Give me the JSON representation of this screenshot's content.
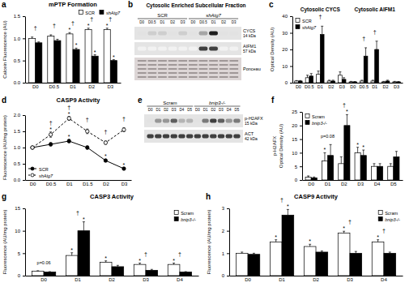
{
  "chart_data": [
    {
      "type": "bar",
      "panel": "a",
      "title": "mPTP Formation",
      "ylabel": "Calcein Fluorescence (AU)",
      "categories": [
        "D0",
        "D0.5",
        "D1",
        "D2",
        "D3"
      ],
      "series": [
        {
          "name": "SCR",
          "color": "#ffffff",
          "values": [
            1.0,
            1.05,
            1.1,
            1.2,
            1.2
          ],
          "errors": [
            0.03,
            0.03,
            0.03,
            0.03,
            0.03
          ],
          "significance": [
            null,
            null,
            "*",
            "*",
            "*"
          ]
        },
        {
          "name": "shAtg7",
          "color": "#000000",
          "values": [
            0.9,
            0.95,
            0.75,
            0.6,
            0.5
          ],
          "errors": [
            0.02,
            0.03,
            0.03,
            0.03,
            0.02
          ],
          "significance": [
            null,
            null,
            "*",
            "*",
            "*"
          ]
        }
      ],
      "group_significance": [
        "†",
        "†",
        "†",
        "†",
        "†"
      ],
      "ylim": [
        0,
        1.5
      ],
      "yticks": [
        {
          "value": 0,
          "label": "0.0"
        },
        0.5,
        {
          "value": 1,
          "label": "1.0"
        },
        1.5
      ],
      "legend": "top"
    },
    {
      "type": "blot",
      "panel": "b",
      "title": "Cytosolic Enriched Subcellular Fraction",
      "groups": [
        "SCR",
        "shAtg7"
      ],
      "lanes": [
        "D0",
        "D0.5",
        "D1",
        "D2",
        "D3"
      ],
      "rows": [
        {
          "name": "CYCS",
          "size": "14 kDa",
          "bands": [
            0.2,
            0.3,
            0.3,
            0.2,
            0.3,
            0.2,
            0.45,
            0.9,
            0.2,
            0.2
          ]
        },
        {
          "name": "AIFM1",
          "size": "57 kDa",
          "bands": [
            0.1,
            0.1,
            0.1,
            0.1,
            0.1,
            0.1,
            0.8,
            0.8,
            0.1,
            0.1
          ]
        },
        {
          "name": "Ponceau"
        }
      ]
    },
    {
      "type": "bar",
      "panel": "c",
      "subtitles": [
        "Cytosolic CYCS",
        "Cytosolic AIFM1"
      ],
      "ylabel": "Optical Density (AU)",
      "categories": [
        "D0",
        "D0.5",
        "D1",
        "D2",
        "D3",
        "D0",
        "D0.5",
        "D1",
        "D2",
        "D3"
      ],
      "series": [
        {
          "name": "SCR",
          "color": "#ffffff",
          "values": [
            1,
            3,
            5,
            1,
            4.5,
            0.5,
            1,
            1,
            0.5,
            0.5
          ],
          "errors": [
            0.3,
            1.5,
            2,
            0.5,
            2,
            0.3,
            0.5,
            0.5,
            0.3,
            0.3
          ]
        },
        {
          "name": "shAtg7",
          "color": "#000000",
          "values": [
            1,
            4,
            29,
            1,
            2,
            0.5,
            16,
            20,
            1,
            0.5
          ],
          "errors": [
            0.3,
            1.5,
            5,
            0.5,
            1,
            0.2,
            5,
            5,
            0.5,
            0.2
          ]
        }
      ],
      "group_significance": [
        null,
        null,
        "†",
        null,
        null,
        null,
        "†",
        "†",
        null,
        null
      ],
      "ylim": [
        0,
        40
      ],
      "yticks": [
        0,
        10,
        20,
        30,
        40
      ],
      "legend": "top-left"
    },
    {
      "type": "line",
      "panel": "d",
      "title": "CASP9 Activity",
      "ylabel": "Fluorescence (AU/mg protein)",
      "categories": [
        "D0",
        "D0.5",
        "D1",
        "D1.5",
        "D2",
        "D3"
      ],
      "series": [
        {
          "name": "SCR",
          "color": "#000000",
          "marker": "circle",
          "line_style": "solid",
          "values": [
            1.0,
            1.1,
            1.2,
            1.0,
            0.6,
            0.35
          ],
          "errors": [
            0.03,
            0.05,
            0.05,
            0.05,
            0.04,
            0.03
          ],
          "significance": [
            null,
            null,
            "*",
            null,
            "*",
            "*"
          ]
        },
        {
          "name": "shAtg7",
          "color": "#000000",
          "marker": "open-circle",
          "line_style": "dashed",
          "values": [
            1.0,
            1.4,
            1.9,
            1.5,
            1.15,
            1.55
          ],
          "errors": [
            0.03,
            0.08,
            0.06,
            0.07,
            0.05,
            0.06
          ],
          "significance": [
            null,
            "*",
            "*",
            null,
            null,
            null
          ]
        }
      ],
      "group_significance": [
        null,
        "†",
        "†",
        "†",
        "†",
        "†"
      ],
      "ylim": [
        0,
        2
      ],
      "yticks": [
        {
          "value": 0,
          "label": "0.0"
        },
        0.5,
        {
          "value": 1,
          "label": "1.0"
        },
        1.5,
        {
          "value": 2,
          "label": "2.0"
        }
      ],
      "legend": "bottom-left"
    },
    {
      "type": "blot",
      "panel": "e",
      "groups": [
        "Scram",
        "bnip3-/-"
      ],
      "lanes": [
        "D0",
        "D1",
        "D2",
        "D3",
        "D4",
        "D5"
      ],
      "rows": [
        {
          "name": "p-H2AFX",
          "size": "15 kDa",
          "bands": [
            0.2,
            0.5,
            0.5,
            0.7,
            0.4,
            0.4,
            0.2,
            0.6,
            0.8,
            0.7,
            0.5,
            0.6
          ]
        },
        {
          "name": "ACT",
          "size": "42 kDa",
          "bands": [
            0.8,
            0.8,
            0.8,
            0.8,
            0.8,
            0.8,
            0.8,
            0.8,
            0.8,
            0.8,
            0.8,
            0.8
          ]
        }
      ]
    },
    {
      "type": "bar",
      "panel": "f",
      "ylabel": [
        "p-H2AFX",
        "Optical Density (AU)"
      ],
      "categories": [
        "D0",
        "D1",
        "D2",
        "D3",
        "D4",
        "D5"
      ],
      "series": [
        {
          "name": "Scram",
          "color": "#ffffff",
          "values": [
            1,
            7,
            6,
            10,
            5,
            5
          ],
          "errors": [
            0.5,
            3,
            2.5,
            2,
            1,
            1
          ],
          "significance": [
            null,
            "*",
            null,
            "*",
            null,
            null
          ]
        },
        {
          "name": "bnip3-/-",
          "color": "#000000",
          "values": [
            0.8,
            9,
            20,
            9,
            5,
            8.5
          ],
          "errors": [
            0.3,
            4,
            4,
            2,
            1,
            2
          ],
          "significance": [
            null,
            null,
            "*",
            "*",
            null,
            null
          ]
        }
      ],
      "group_significance": [
        null,
        null,
        "†",
        null,
        null,
        null
      ],
      "annotations": [
        {
          "text": "p=0.08",
          "category": "D1"
        }
      ],
      "ylim": [
        0,
        25
      ],
      "yticks": [
        0,
        5,
        10,
        15,
        20,
        25
      ],
      "legend": "top-left"
    },
    {
      "type": "bar",
      "panel": "g",
      "title": "CASP3 Activity",
      "ylabel": "Fluorescence (AU/mg protein)",
      "categories": [
        "D0",
        "D1",
        "D2",
        "D3",
        "D4"
      ],
      "series": [
        {
          "name": "Scram",
          "color": "#ffffff",
          "values": [
            1,
            4.5,
            3,
            2.5,
            2.5
          ],
          "errors": [
            0.1,
            0.6,
            0.3,
            0.3,
            0.3
          ],
          "significance": [
            null,
            "*",
            "*",
            "*",
            "*"
          ]
        },
        {
          "name": "bnip3-/-",
          "color": "#000000",
          "values": [
            0.8,
            10,
            2,
            1.2,
            0.8
          ],
          "errors": [
            0.1,
            2,
            0.3,
            0.2,
            0.1
          ],
          "significance": [
            null,
            "*",
            null,
            null,
            null
          ]
        }
      ],
      "group_significance": [
        null,
        "†",
        null,
        "†",
        "†"
      ],
      "annotations": [
        {
          "text": "p=0.06",
          "category": "D0"
        }
      ],
      "ylim": [
        0,
        15
      ],
      "yticks": [
        0,
        5,
        10,
        15
      ],
      "legend": "top-right"
    },
    {
      "type": "bar",
      "panel": "h",
      "title": "CASP9 Activity",
      "ylabel": "Fluorescence (AU/mg protein)",
      "categories": [
        "D0",
        "D1",
        "D2",
        "D3",
        "D4"
      ],
      "series": [
        {
          "name": "Scram",
          "color": "#ffffff",
          "values": [
            1,
            1.5,
            1.3,
            1.9,
            1.5
          ],
          "errors": [
            0.05,
            0.1,
            0.1,
            0.08,
            0.1
          ],
          "significance": [
            null,
            "*",
            "*",
            "*",
            "*"
          ]
        },
        {
          "name": "bnip3-/-",
          "color": "#000000",
          "values": [
            0.95,
            2.7,
            1.05,
            1.0,
            1.0
          ],
          "errors": [
            0.05,
            0.25,
            0.05,
            0.08,
            0.05
          ],
          "significance": [
            null,
            "*",
            null,
            null,
            null
          ]
        }
      ],
      "group_significance": [
        null,
        "†",
        null,
        "†",
        "†"
      ],
      "ylim": [
        0,
        3
      ],
      "yticks": [
        0,
        1,
        2,
        3
      ],
      "legend": "top-right"
    }
  ]
}
